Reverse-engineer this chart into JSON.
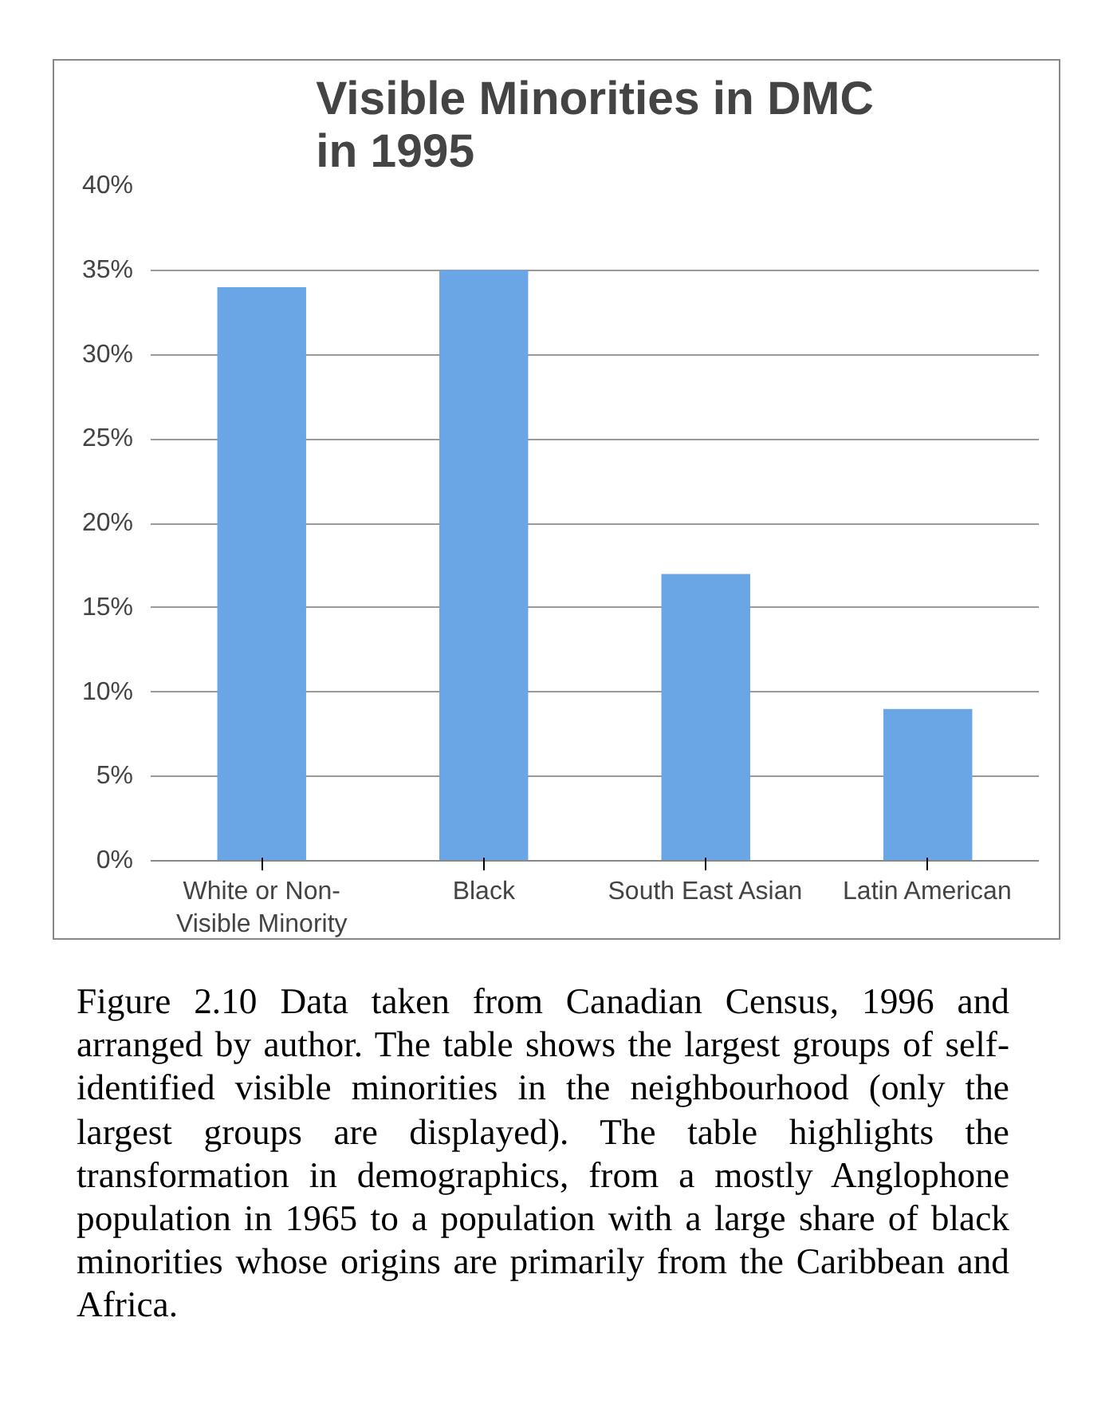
{
  "chart_data": {
    "type": "bar",
    "title": "Visible Minorities in DMC in 1995",
    "categories": [
      "White or Non-Visible Minority",
      "Black",
      "South East Asian",
      "Latin American"
    ],
    "values": [
      34,
      35,
      17,
      9
    ],
    "color": "#6aa5e6",
    "ylim": [
      0,
      40
    ],
    "yticks": [
      {
        "value": 0,
        "label": "0%"
      },
      {
        "value": 5,
        "label": "5%"
      },
      {
        "value": 10,
        "label": "10%"
      },
      {
        "value": 15,
        "label": "15%"
      },
      {
        "value": 20,
        "label": "20%"
      },
      {
        "value": 25,
        "label": "25%"
      },
      {
        "value": 30,
        "label": "30%"
      },
      {
        "value": 35,
        "label": "35%"
      },
      {
        "value": 40,
        "label": "40%"
      }
    ],
    "grid": "y",
    "annotations": [
      "Figure 2.10 Data taken from Canadian Census, 1996 and arranged by author.  The table shows the largest groups of self-identified visible minorities in the neighbourhood (only the largest groups are displayed).  The table highlights the transformation in demographics, from a mostly Anglophone population in 1965 to a population with a large share of black minorities whose origins are primarily from the Caribbean and Africa."
    ]
  }
}
